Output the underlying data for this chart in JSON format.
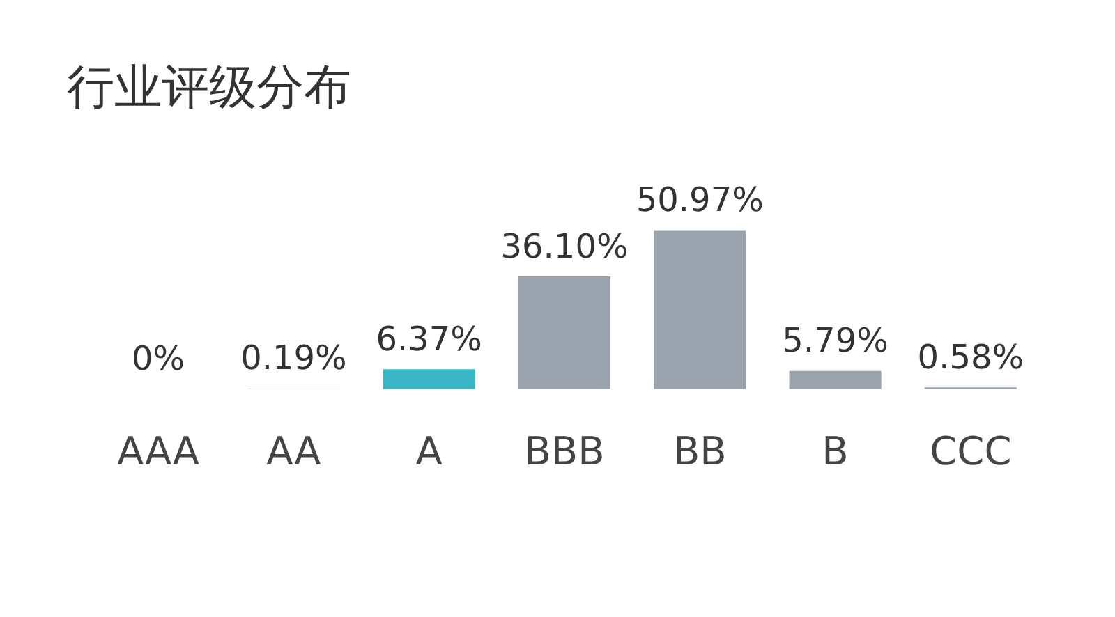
{
  "chart_data": {
    "type": "bar",
    "title": "行业评级分布",
    "categories": [
      "AAA",
      "AA",
      "A",
      "BBB",
      "BB",
      "B",
      "CCC"
    ],
    "values": [
      0,
      0.19,
      6.37,
      36.1,
      50.97,
      5.79,
      0.58
    ],
    "colors": [
      "#9aa3ad",
      "#9aa3ad",
      "#3ab7c6",
      "#9aa3ad",
      "#9aa3ad",
      "#9aa3ad",
      "#9aa3ad"
    ],
    "value_labels": [
      "0%",
      "0.19%",
      "6.37%",
      "36.10%",
      "50.97%",
      "5.79%",
      "0.58%"
    ],
    "tick_labels": "x",
    "grid": false,
    "legend": false
  }
}
